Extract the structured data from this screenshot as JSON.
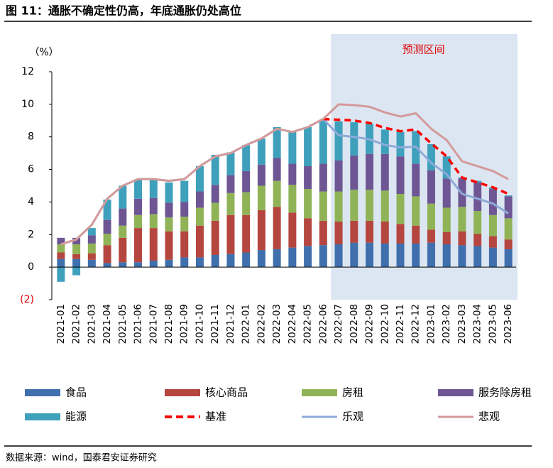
{
  "chart_data": {
    "type": "bar",
    "title": "图 11：通胀不确定性仍高，年底通胀仍处高位",
    "unit_label": "（%）",
    "source": "数据来源：wind，国泰君安证券研究",
    "forecast": {
      "label": "预测区间",
      "start": "2022-07",
      "color": "#dce6f2"
    },
    "categories": [
      "2021-01",
      "2021-02",
      "2021-03",
      "2021-04",
      "2021-05",
      "2021-06",
      "2021-07",
      "2021-08",
      "2021-09",
      "2021-10",
      "2021-11",
      "2021-12",
      "2022-01",
      "2022-02",
      "2022-03",
      "2022-04",
      "2022-05",
      "2022-06",
      "2022-07",
      "2022-08",
      "2022-09",
      "2022-10",
      "2022-11",
      "2022-12",
      "2023-01",
      "2023-02",
      "2023-03",
      "2023-04",
      "2023-05",
      "2023-06"
    ],
    "ylim": [
      -2,
      12
    ],
    "yticks": [
      {
        "value": -2,
        "label": "(2)"
      },
      0,
      2,
      4,
      6,
      8,
      10,
      12
    ],
    "series": [
      {
        "name": "食品",
        "color": "#3f6fad",
        "values": [
          0.5,
          0.5,
          0.45,
          0.25,
          0.3,
          0.3,
          0.4,
          0.45,
          0.6,
          0.6,
          0.75,
          0.8,
          0.9,
          1.05,
          1.1,
          1.2,
          1.3,
          1.35,
          1.4,
          1.5,
          1.5,
          1.45,
          1.45,
          1.45,
          1.5,
          1.4,
          1.35,
          1.3,
          1.2,
          1.1
        ]
      },
      {
        "name": "核心商品",
        "color": "#b5463f",
        "values": [
          0.4,
          0.3,
          0.4,
          1.1,
          1.5,
          2.1,
          2.0,
          1.75,
          1.6,
          1.95,
          2.1,
          2.4,
          2.3,
          2.45,
          2.6,
          2.15,
          1.7,
          1.5,
          1.4,
          1.35,
          1.35,
          1.35,
          1.2,
          1.1,
          0.8,
          0.75,
          0.85,
          0.75,
          0.7,
          0.6
        ]
      },
      {
        "name": "房租",
        "color": "#8fb356",
        "values": [
          0.5,
          0.6,
          0.6,
          0.7,
          0.75,
          0.8,
          0.85,
          0.85,
          0.9,
          1.1,
          1.1,
          1.35,
          1.4,
          1.5,
          1.6,
          1.7,
          1.8,
          1.8,
          1.85,
          1.9,
          1.9,
          1.9,
          1.85,
          1.8,
          1.6,
          1.5,
          1.5,
          1.4,
          1.3,
          1.3
        ]
      },
      {
        "name": "服务除房租",
        "color": "#6d5693",
        "values": [
          0.4,
          0.4,
          0.5,
          0.85,
          1.05,
          1.0,
          1.0,
          0.9,
          0.9,
          1.0,
          1.1,
          1.1,
          1.3,
          1.3,
          1.4,
          1.3,
          1.4,
          1.7,
          1.9,
          2.1,
          2.2,
          2.25,
          2.3,
          2.0,
          2.05,
          1.8,
          1.75,
          1.75,
          1.6,
          1.35
        ]
      },
      {
        "name": "能源",
        "color": "#3fa0bc",
        "values": [
          -0.9,
          -0.5,
          0.45,
          1.25,
          1.4,
          1.2,
          1.1,
          1.25,
          1.3,
          1.55,
          1.85,
          1.4,
          1.6,
          1.6,
          1.9,
          1.95,
          2.4,
          2.65,
          2.4,
          2.05,
          1.85,
          1.5,
          1.5,
          2.0,
          1.6,
          1.35,
          0.05,
          0.1,
          0.1,
          0.05
        ]
      },
      {
        "name": "基准",
        "type": "line",
        "dashed": true,
        "color": "#ff0000",
        "values": [
          null,
          null,
          null,
          null,
          null,
          null,
          null,
          null,
          null,
          null,
          null,
          null,
          null,
          null,
          null,
          null,
          null,
          9.1,
          9.05,
          9.0,
          8.85,
          8.55,
          8.35,
          8.45,
          7.6,
          6.8,
          5.5,
          5.2,
          4.9,
          4.5
        ]
      },
      {
        "name": "乐观",
        "type": "line",
        "color": "#8eaad8",
        "values": [
          1.4,
          1.7,
          2.6,
          4.2,
          5.0,
          5.4,
          5.4,
          5.3,
          5.4,
          6.2,
          6.8,
          7.0,
          7.5,
          7.9,
          8.5,
          8.3,
          8.6,
          9.1,
          8.1,
          8.0,
          7.85,
          7.5,
          7.35,
          7.4,
          6.4,
          5.7,
          4.5,
          4.2,
          3.9,
          3.3
        ]
      },
      {
        "name": "悲观",
        "type": "line",
        "color": "#d49a9a",
        "values": [
          1.4,
          1.7,
          2.6,
          4.2,
          5.0,
          5.4,
          5.4,
          5.3,
          5.4,
          6.2,
          6.8,
          7.0,
          7.5,
          7.9,
          8.5,
          8.3,
          8.6,
          9.1,
          10.0,
          9.95,
          9.85,
          9.5,
          9.25,
          9.45,
          8.5,
          7.8,
          6.5,
          6.2,
          5.9,
          5.4
        ]
      }
    ]
  }
}
